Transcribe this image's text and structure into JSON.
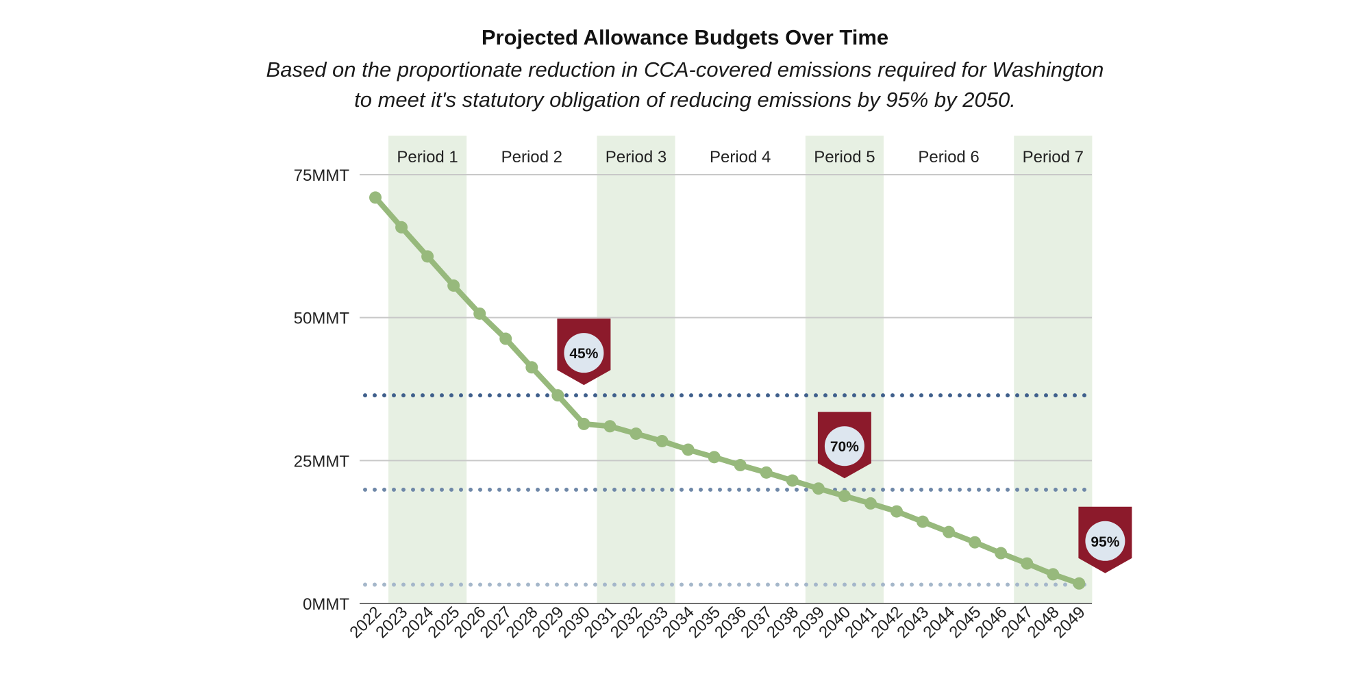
{
  "chart_data": {
    "type": "line",
    "title": "Projected Allowance Budgets Over Time",
    "subtitle_lines": [
      "Based on the proportionate reduction in CCA-covered emissions required for Washington",
      "to meet it's statutory obligation of reducing emissions by 95% by 2050."
    ],
    "xlabel": "",
    "ylabel": "",
    "y_unit": "MMT",
    "ylim": [
      0,
      75
    ],
    "y_ticks": [
      0,
      25,
      50,
      75
    ],
    "y_tick_labels": [
      "0MMT",
      "25MMT",
      "50MMT",
      "75MMT"
    ],
    "grid": true,
    "x": [
      2022,
      2023,
      2024,
      2025,
      2026,
      2027,
      2028,
      2029,
      2030,
      2031,
      2032,
      2033,
      2034,
      2035,
      2036,
      2037,
      2038,
      2039,
      2040,
      2041,
      2042,
      2043,
      2044,
      2045,
      2046,
      2047,
      2048,
      2049
    ],
    "series": [
      {
        "values": [
          71,
          65.8,
          60.7,
          55.6,
          50.7,
          46.3,
          41.3,
          36.4,
          31.4,
          31.0,
          29.7,
          28.4,
          26.9,
          25.6,
          24.2,
          22.9,
          21.5,
          20.1,
          18.8,
          17.5,
          16.1,
          14.3,
          12.5,
          10.7,
          8.8,
          7.0,
          5.1,
          3.5
        ],
        "color": "#97b97c"
      }
    ],
    "periods": [
      {
        "label": "Period 1",
        "start": 2023,
        "end": 2026,
        "shaded": true
      },
      {
        "label": "Period 2",
        "start": 2027,
        "end": 2030,
        "shaded": false
      },
      {
        "label": "Period 3",
        "start": 2031,
        "end": 2034,
        "shaded": true
      },
      {
        "label": "Period 4",
        "start": 2035,
        "end": 2038,
        "shaded": false
      },
      {
        "label": "Period 5",
        "start": 2039,
        "end": 2042,
        "shaded": true
      },
      {
        "label": "Period 6",
        "start": 2043,
        "end": 2046,
        "shaded": false
      },
      {
        "label": "Period 7",
        "start": 2047,
        "end": 2050,
        "shaded": true
      }
    ],
    "reference_lines": [
      {
        "value": 36.4,
        "color": "#40608c"
      },
      {
        "value": 19.9,
        "color": "#6f88a8"
      },
      {
        "value": 3.3,
        "color": "#a5b7ca"
      }
    ],
    "markers": [
      {
        "label": "45%",
        "year": 2029,
        "value": 36.4
      },
      {
        "label": "70%",
        "year": 2039,
        "value": 20.1
      },
      {
        "label": "95%",
        "year": 2049,
        "value": 3.5
      }
    ]
  },
  "colors": {
    "period_shade": "#e7f0e3",
    "gridline": "#c8c8c8",
    "axis": "#6e6e6e",
    "marker_flag": "#8c1a2b",
    "marker_circle": "#dde6ef"
  }
}
